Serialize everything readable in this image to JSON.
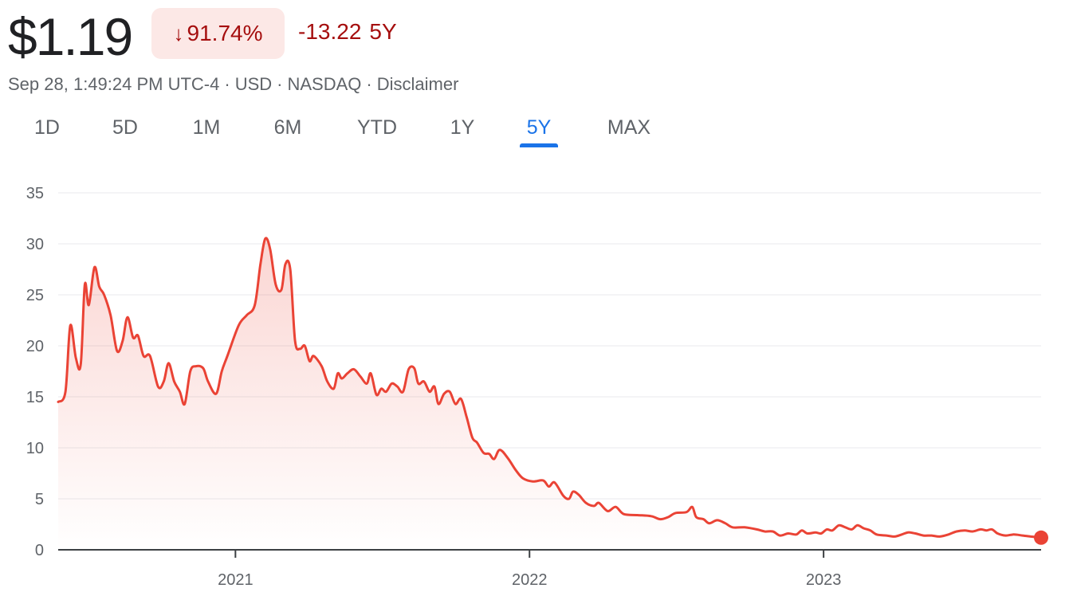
{
  "quote": {
    "price": "$1.19",
    "change_percent": "91.74%",
    "change_direction_icon": "arrow-down-icon",
    "change_absolute": "-13.22",
    "change_period": "5Y",
    "timestamp": "Sep 28, 1:49:24 PM UTC-4",
    "currency": "USD",
    "exchange": "NASDAQ",
    "disclaimer": "Disclaimer",
    "separator": "·"
  },
  "tabs": [
    {
      "label": "1D",
      "active": false
    },
    {
      "label": "5D",
      "active": false
    },
    {
      "label": "1M",
      "active": false
    },
    {
      "label": "6M",
      "active": false
    },
    {
      "label": "YTD",
      "active": false
    },
    {
      "label": "1Y",
      "active": false
    },
    {
      "label": "5Y",
      "active": true
    },
    {
      "label": "MAX",
      "active": false
    }
  ],
  "colors": {
    "negative": "#ea4335",
    "negative_text": "#a50e0e",
    "negative_bg": "#fce8e6",
    "accent": "#1a73e8",
    "grid": "#e8eaed",
    "axis": "#3c4043"
  },
  "chart_data": {
    "type": "area",
    "title": "",
    "xlabel": "",
    "ylabel": "",
    "ylim": [
      0,
      35
    ],
    "y_ticks": [
      0,
      5,
      10,
      15,
      20,
      25,
      30,
      35
    ],
    "xlim": [
      "2020-05-26",
      "2023-09-28"
    ],
    "x_ticks": [
      {
        "date": "2021-01-01",
        "label": "2021"
      },
      {
        "date": "2022-01-01",
        "label": "2022"
      },
      {
        "date": "2023-01-01",
        "label": "2023"
      }
    ],
    "grid": true,
    "series": [
      {
        "values": [
          [
            "2020-05-26",
            14.5
          ],
          [
            "2020-06-04",
            15.5
          ],
          [
            "2020-06-10",
            22.0
          ],
          [
            "2020-06-17",
            18.8
          ],
          [
            "2020-06-23",
            18.2
          ],
          [
            "2020-06-28",
            26.0
          ],
          [
            "2020-07-03",
            24.0
          ],
          [
            "2020-07-10",
            27.7
          ],
          [
            "2020-07-16",
            25.8
          ],
          [
            "2020-07-22",
            25.0
          ],
          [
            "2020-07-30",
            23.0
          ],
          [
            "2020-08-07",
            19.5
          ],
          [
            "2020-08-14",
            20.5
          ],
          [
            "2020-08-20",
            22.8
          ],
          [
            "2020-08-27",
            20.8
          ],
          [
            "2020-09-02",
            21.0
          ],
          [
            "2020-09-09",
            19.0
          ],
          [
            "2020-09-17",
            19.0
          ],
          [
            "2020-09-27",
            16.0
          ],
          [
            "2020-10-04",
            16.5
          ],
          [
            "2020-10-10",
            18.3
          ],
          [
            "2020-10-17",
            16.5
          ],
          [
            "2020-10-24",
            15.5
          ],
          [
            "2020-10-30",
            14.3
          ],
          [
            "2020-11-06",
            17.5
          ],
          [
            "2020-11-13",
            18.0
          ],
          [
            "2020-11-22",
            17.8
          ],
          [
            "2020-11-28",
            16.5
          ],
          [
            "2020-12-08",
            15.3
          ],
          [
            "2020-12-15",
            17.5
          ],
          [
            "2020-12-22",
            19.0
          ],
          [
            "2021-01-05",
            22.0
          ],
          [
            "2021-01-15",
            23.0
          ],
          [
            "2021-01-25",
            24.0
          ],
          [
            "2021-02-01",
            28.0
          ],
          [
            "2021-02-07",
            30.5
          ],
          [
            "2021-02-13",
            29.5
          ],
          [
            "2021-02-20",
            26.0
          ],
          [
            "2021-02-27",
            25.5
          ],
          [
            "2021-03-04",
            28.0
          ],
          [
            "2021-03-10",
            27.5
          ],
          [
            "2021-03-16",
            20.5
          ],
          [
            "2021-03-22",
            19.7
          ],
          [
            "2021-03-28",
            20.0
          ],
          [
            "2021-04-03",
            18.5
          ],
          [
            "2021-04-08",
            19.0
          ],
          [
            "2021-04-18",
            18.0
          ],
          [
            "2021-04-25",
            16.5
          ],
          [
            "2021-05-03",
            15.8
          ],
          [
            "2021-05-08",
            17.3
          ],
          [
            "2021-05-13",
            16.8
          ],
          [
            "2021-05-20",
            17.3
          ],
          [
            "2021-05-28",
            17.7
          ],
          [
            "2021-06-05",
            17.0
          ],
          [
            "2021-06-13",
            16.3
          ],
          [
            "2021-06-18",
            17.3
          ],
          [
            "2021-06-25",
            15.2
          ],
          [
            "2021-07-01",
            15.8
          ],
          [
            "2021-07-07",
            15.5
          ],
          [
            "2021-07-14",
            16.3
          ],
          [
            "2021-07-21",
            16.0
          ],
          [
            "2021-07-28",
            15.5
          ],
          [
            "2021-08-04",
            17.7
          ],
          [
            "2021-08-11",
            17.8
          ],
          [
            "2021-08-16",
            16.3
          ],
          [
            "2021-08-23",
            16.5
          ],
          [
            "2021-08-30",
            15.5
          ],
          [
            "2021-09-05",
            16.0
          ],
          [
            "2021-09-10",
            14.3
          ],
          [
            "2021-09-17",
            15.3
          ],
          [
            "2021-09-24",
            15.5
          ],
          [
            "2021-10-01",
            14.3
          ],
          [
            "2021-10-08",
            14.8
          ],
          [
            "2021-10-15",
            13.0
          ],
          [
            "2021-10-22",
            11.0
          ],
          [
            "2021-10-28",
            10.5
          ],
          [
            "2021-11-05",
            9.5
          ],
          [
            "2021-11-12",
            9.4
          ],
          [
            "2021-11-18",
            8.9
          ],
          [
            "2021-11-25",
            9.8
          ],
          [
            "2021-12-05",
            9.0
          ],
          [
            "2021-12-15",
            7.8
          ],
          [
            "2021-12-24",
            7.0
          ],
          [
            "2022-01-05",
            6.7
          ],
          [
            "2022-01-18",
            6.8
          ],
          [
            "2022-01-25",
            6.2
          ],
          [
            "2022-02-01",
            6.6
          ],
          [
            "2022-02-12",
            5.3
          ],
          [
            "2022-02-19",
            5.0
          ],
          [
            "2022-02-24",
            5.7
          ],
          [
            "2022-03-03",
            5.4
          ],
          [
            "2022-03-12",
            4.6
          ],
          [
            "2022-03-22",
            4.3
          ],
          [
            "2022-03-28",
            4.6
          ],
          [
            "2022-04-08",
            3.8
          ],
          [
            "2022-04-18",
            4.2
          ],
          [
            "2022-04-28",
            3.5
          ],
          [
            "2022-05-15",
            3.4
          ],
          [
            "2022-06-01",
            3.3
          ],
          [
            "2022-06-12",
            3.0
          ],
          [
            "2022-06-22",
            3.2
          ],
          [
            "2022-07-01",
            3.6
          ],
          [
            "2022-07-15",
            3.7
          ],
          [
            "2022-07-22",
            4.2
          ],
          [
            "2022-07-27",
            3.2
          ],
          [
            "2022-08-05",
            3.0
          ],
          [
            "2022-08-12",
            2.6
          ],
          [
            "2022-08-22",
            2.9
          ],
          [
            "2022-09-01",
            2.6
          ],
          [
            "2022-09-10",
            2.2
          ],
          [
            "2022-09-25",
            2.2
          ],
          [
            "2022-10-10",
            2.0
          ],
          [
            "2022-10-20",
            1.8
          ],
          [
            "2022-10-30",
            1.8
          ],
          [
            "2022-11-08",
            1.4
          ],
          [
            "2022-11-18",
            1.6
          ],
          [
            "2022-11-28",
            1.5
          ],
          [
            "2022-12-05",
            1.9
          ],
          [
            "2022-12-12",
            1.6
          ],
          [
            "2022-12-22",
            1.7
          ],
          [
            "2022-12-29",
            1.6
          ],
          [
            "2023-01-05",
            2.0
          ],
          [
            "2023-01-12",
            1.9
          ],
          [
            "2023-01-20",
            2.4
          ],
          [
            "2023-01-28",
            2.2
          ],
          [
            "2023-02-05",
            2.0
          ],
          [
            "2023-02-12",
            2.4
          ],
          [
            "2023-02-20",
            2.1
          ],
          [
            "2023-02-28",
            1.9
          ],
          [
            "2023-03-08",
            1.5
          ],
          [
            "2023-03-20",
            1.4
          ],
          [
            "2023-03-30",
            1.3
          ],
          [
            "2023-04-08",
            1.5
          ],
          [
            "2023-04-16",
            1.7
          ],
          [
            "2023-04-25",
            1.6
          ],
          [
            "2023-05-05",
            1.4
          ],
          [
            "2023-05-15",
            1.4
          ],
          [
            "2023-05-25",
            1.3
          ],
          [
            "2023-06-05",
            1.5
          ],
          [
            "2023-06-15",
            1.8
          ],
          [
            "2023-06-25",
            1.9
          ],
          [
            "2023-07-05",
            1.8
          ],
          [
            "2023-07-15",
            2.0
          ],
          [
            "2023-07-22",
            1.9
          ],
          [
            "2023-07-29",
            2.0
          ],
          [
            "2023-08-05",
            1.6
          ],
          [
            "2023-08-15",
            1.4
          ],
          [
            "2023-08-25",
            1.5
          ],
          [
            "2023-09-05",
            1.4
          ],
          [
            "2023-09-15",
            1.3
          ],
          [
            "2023-09-28",
            1.19
          ]
        ]
      }
    ]
  }
}
